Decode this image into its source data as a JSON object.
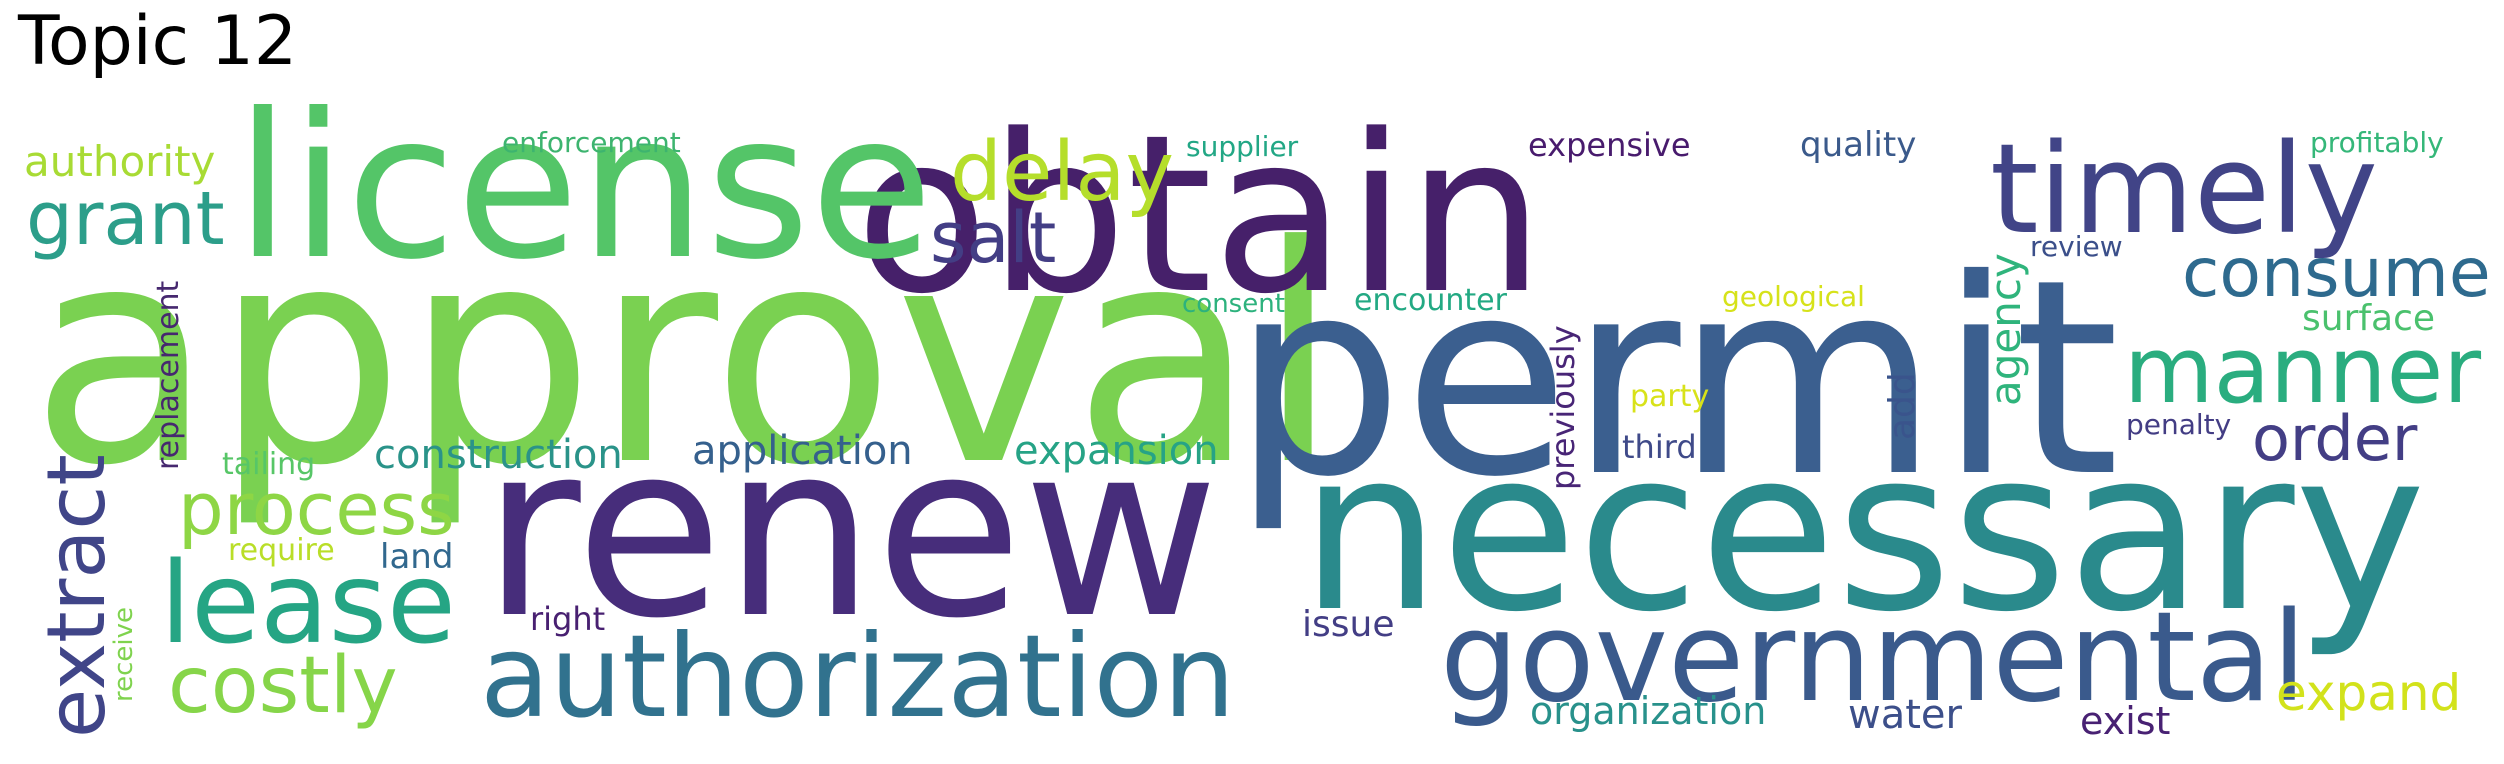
{
  "title": "Topic 12",
  "colors": {
    "dark_purple": "#482677",
    "purple": "#440154",
    "indigo": "#3b528b",
    "blue": "#33638d",
    "teal_blue": "#2c728e",
    "teal": "#21908d",
    "sea_green": "#27ad81",
    "green": "#5dc963",
    "light_green": "#7ad151",
    "lime": "#addc30",
    "yellow": "#d8e219"
  },
  "words": [
    {
      "id": "approval",
      "text": "approval",
      "color": "#7ad151"
    },
    {
      "id": "permit",
      "text": "permit",
      "color": "#3b5f8f"
    },
    {
      "id": "obtain",
      "text": "obtain",
      "color": "#46206a"
    },
    {
      "id": "license",
      "text": "license",
      "color": "#54c568"
    },
    {
      "id": "renew",
      "text": "renew",
      "color": "#472d7b"
    },
    {
      "id": "necessary",
      "text": "necessary",
      "color": "#2a8a8c"
    },
    {
      "id": "timely",
      "text": "timely",
      "color": "#414487"
    },
    {
      "id": "governmental",
      "text": "governmental",
      "color": "#3a5a8c"
    },
    {
      "id": "authorization",
      "text": "authorization",
      "color": "#31728e"
    },
    {
      "id": "lease",
      "text": "lease",
      "color": "#25a584"
    },
    {
      "id": "manner",
      "text": "manner",
      "color": "#2aad7f"
    },
    {
      "id": "consume",
      "text": "consume",
      "color": "#2e6a8e"
    },
    {
      "id": "delay",
      "text": "delay",
      "color": "#b5de2b"
    },
    {
      "id": "grant",
      "text": "grant",
      "color": "#2c9e8a"
    },
    {
      "id": "salt",
      "text": "salt",
      "color": "#433e85"
    },
    {
      "id": "process",
      "text": "process",
      "color": "#8ed645"
    },
    {
      "id": "costly",
      "text": "costly",
      "color": "#86d549"
    },
    {
      "id": "extract",
      "text": "extract",
      "color": "#404588"
    },
    {
      "id": "order",
      "text": "order",
      "color": "#433e85"
    },
    {
      "id": "expand",
      "text": "expand",
      "color": "#d2e21b"
    },
    {
      "id": "construction",
      "text": "construction",
      "color": "#2a9389"
    },
    {
      "id": "application",
      "text": "application",
      "color": "#35608d"
    },
    {
      "id": "expansion",
      "text": "expansion",
      "color": "#26a386"
    },
    {
      "id": "authority",
      "text": "authority",
      "color": "#a8db34"
    },
    {
      "id": "organization",
      "text": "organization",
      "color": "#28918b"
    },
    {
      "id": "water",
      "text": "water",
      "color": "#3c4f8a"
    },
    {
      "id": "exist",
      "text": "exist",
      "color": "#482173"
    },
    {
      "id": "surface",
      "text": "surface",
      "color": "#4ac16d"
    },
    {
      "id": "agency",
      "text": "agency",
      "color": "#2fb47c"
    },
    {
      "id": "land",
      "text": "land",
      "color": "#31688e"
    },
    {
      "id": "quality",
      "text": "quality",
      "color": "#3b5a8b"
    },
    {
      "id": "expensive",
      "text": "expensive",
      "color": "#481b6d"
    },
    {
      "id": "issue",
      "text": "issue",
      "color": "#433e85"
    },
    {
      "id": "previously",
      "text": "previously",
      "color": "#482576"
    },
    {
      "id": "add",
      "text": "add",
      "color": "#3a548c"
    },
    {
      "id": "encounter",
      "text": "encounter",
      "color": "#23a983"
    },
    {
      "id": "third",
      "text": "third",
      "color": "#3f4a89"
    },
    {
      "id": "right",
      "text": "right",
      "color": "#482071"
    },
    {
      "id": "replacement",
      "text": "replacement",
      "color": "#46286f"
    },
    {
      "id": "review",
      "text": "review",
      "color": "#3b4f8a"
    },
    {
      "id": "enforcement",
      "text": "enforcement",
      "color": "#3db46f"
    },
    {
      "id": "supplier",
      "text": "supplier",
      "color": "#22a785"
    },
    {
      "id": "profitably",
      "text": "profitably",
      "color": "#35b779"
    },
    {
      "id": "consent",
      "text": "consent",
      "color": "#2db27d"
    },
    {
      "id": "geological",
      "text": "geological",
      "color": "#d6e21a"
    },
    {
      "id": "tailing",
      "text": "tailing",
      "color": "#57c667"
    },
    {
      "id": "require",
      "text": "require",
      "color": "#b9de28"
    },
    {
      "id": "penalty",
      "text": "penalty",
      "color": "#433d84"
    },
    {
      "id": "party",
      "text": "party",
      "color": "#d8e219"
    },
    {
      "id": "receive",
      "text": "receive",
      "color": "#7fd34e"
    }
  ]
}
